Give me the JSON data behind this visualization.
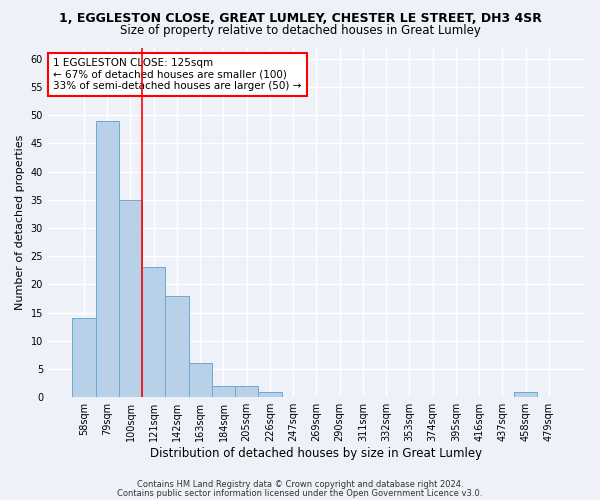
{
  "title_line1": "1, EGGLESTON CLOSE, GREAT LUMLEY, CHESTER LE STREET, DH3 4SR",
  "title_line2": "Size of property relative to detached houses in Great Lumley",
  "xlabel": "Distribution of detached houses by size in Great Lumley",
  "ylabel": "Number of detached properties",
  "categories": [
    "58sqm",
    "79sqm",
    "100sqm",
    "121sqm",
    "142sqm",
    "163sqm",
    "184sqm",
    "205sqm",
    "226sqm",
    "247sqm",
    "269sqm",
    "290sqm",
    "311sqm",
    "332sqm",
    "353sqm",
    "374sqm",
    "395sqm",
    "416sqm",
    "437sqm",
    "458sqm",
    "479sqm"
  ],
  "values": [
    14,
    49,
    35,
    23,
    18,
    6,
    2,
    2,
    1,
    0,
    0,
    0,
    0,
    0,
    0,
    0,
    0,
    0,
    0,
    1,
    0
  ],
  "bar_color": "#b8d0e8",
  "bar_edge_color": "#6aaad4",
  "vline_index": 3,
  "vline_color": "red",
  "annotation_line1": "1 EGGLESTON CLOSE: 125sqm",
  "annotation_line2": "← 67% of detached houses are smaller (100)",
  "annotation_line3": "33% of semi-detached houses are larger (50) →",
  "annotation_box_color": "white",
  "annotation_box_edge": "red",
  "ylim": [
    0,
    62
  ],
  "yticks": [
    0,
    5,
    10,
    15,
    20,
    25,
    30,
    35,
    40,
    45,
    50,
    55,
    60
  ],
  "footer_line1": "Contains HM Land Registry data © Crown copyright and database right 2024.",
  "footer_line2": "Contains public sector information licensed under the Open Government Licence v3.0.",
  "background_color": "#eef2f8",
  "grid_color": "#ffffff",
  "title1_fontsize": 9,
  "title2_fontsize": 8.5,
  "ylabel_fontsize": 8,
  "xlabel_fontsize": 8.5,
  "tick_fontsize": 7,
  "annot_fontsize": 7.5,
  "footer_fontsize": 6
}
